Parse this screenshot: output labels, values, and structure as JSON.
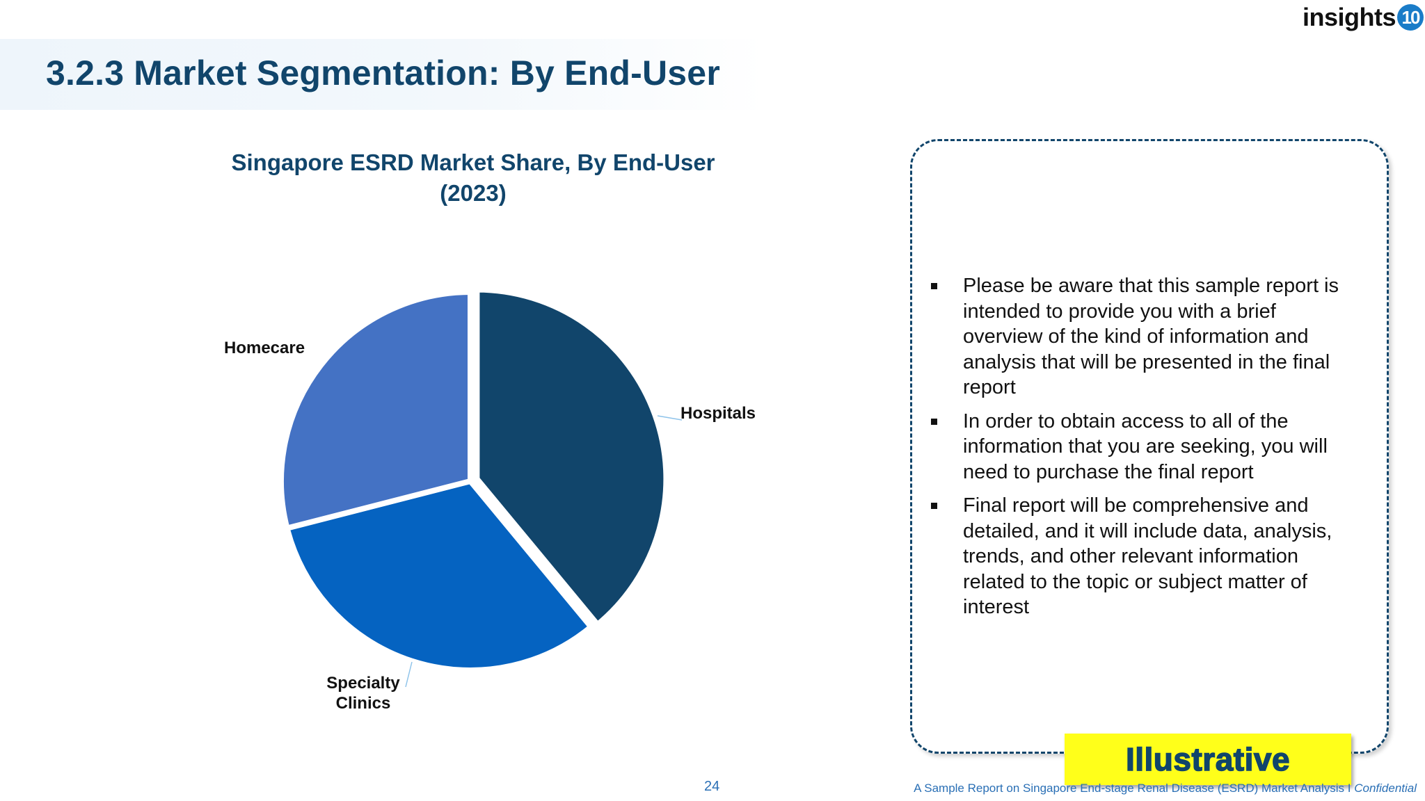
{
  "header": {
    "title": "3.2.3 Market Segmentation: By End-User",
    "logo": {
      "text": "insights",
      "badge": "10",
      "badge_color": "#1a7cc8"
    }
  },
  "chart": {
    "title_line1": "Singapore ESRD Market Share, By End-User",
    "title_line2": "(2023)"
  },
  "chart_data": {
    "type": "pie",
    "title": "Singapore ESRD Market Share, By End-User (2023)",
    "categories": [
      "Hospitals",
      "Specialty Clinics",
      "Homecare"
    ],
    "values": [
      39,
      32,
      29
    ],
    "unit": "% (estimated from slice angles; no data labels shown)",
    "colors": [
      "#11456b",
      "#0563c1",
      "#4472c4"
    ],
    "start_angle": 0,
    "direction": "clockwise",
    "legend": "none (leader-line labels)",
    "exploded": [
      "Hospitals"
    ]
  },
  "labels": {
    "hospitals": "Hospitals",
    "specialty_line1": "Specialty",
    "specialty_line2": "Clinics",
    "homecare": "Homecare"
  },
  "notes": {
    "bullets": [
      "Please be aware that this sample report is intended to provide you with a brief overview of the kind of information and analysis that will be presented in the final report",
      "In order to obtain access to all of the information that you are seeking, you will need to purchase the final report",
      "Final report will be comprehensive and detailed, and it will include data, analysis, trends, and other relevant information related to the topic or subject matter of interest"
    ]
  },
  "stamp": {
    "text": "Illustrative",
    "bg": "#ffff1a"
  },
  "footer": {
    "page_number": "24",
    "text": "A Sample Report on Singapore End-stage Renal Disease (ESRD) Market Analysis I ",
    "confidential": "Confidential"
  }
}
